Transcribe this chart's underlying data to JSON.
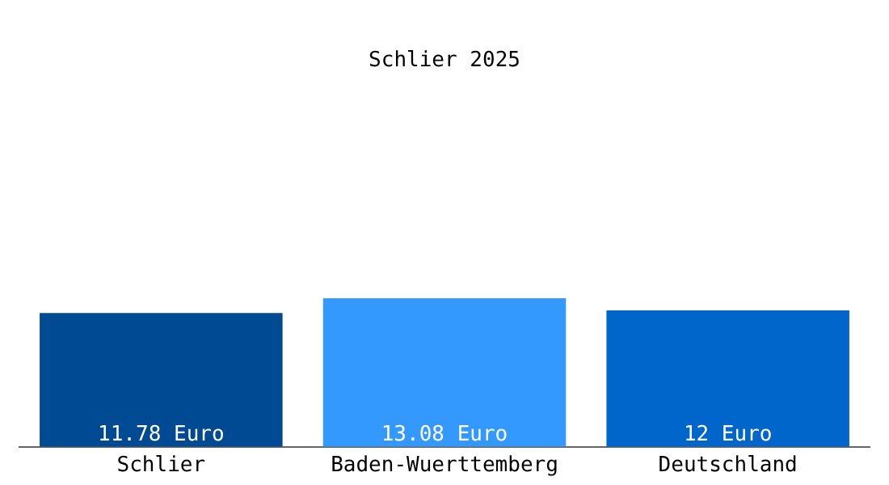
{
  "chart_data": {
    "type": "bar",
    "title": "Schlier 2025",
    "categories": [
      "Schlier",
      "Baden-Wuerttemberg",
      "Deutschland"
    ],
    "values": [
      11.78,
      13.08,
      12
    ],
    "colors": [
      "#004a93",
      "#3399ff",
      "#0066cc"
    ],
    "value_labels": [
      "11.78 Euro",
      "13.08 Euro",
      "12 Euro"
    ],
    "grid": false,
    "legend": false
  }
}
